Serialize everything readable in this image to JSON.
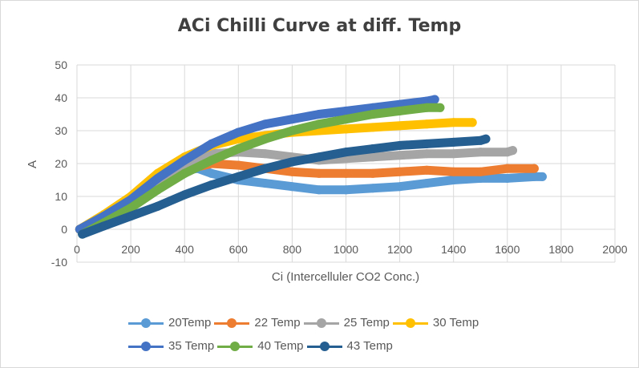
{
  "chart_data": {
    "type": "scatter",
    "title": "ACi Chilli Curve at diff. Temp",
    "xlabel": "Ci (Intercelluler CO2 Conc.)",
    "ylabel": "A",
    "xlim": [
      0,
      2000
    ],
    "ylim": [
      -10,
      50
    ],
    "xticks": [
      "0",
      "200",
      "400",
      "600",
      "800",
      "1000",
      "1200",
      "1400",
      "1600",
      "1800",
      "2000"
    ],
    "yticks": [
      "50",
      "40",
      "30",
      "20",
      "10",
      "0",
      "-10"
    ],
    "xtick_values": [
      0,
      200,
      400,
      600,
      800,
      1000,
      1200,
      1400,
      1600,
      1800,
      2000
    ],
    "ytick_values": [
      50,
      40,
      30,
      20,
      10,
      0,
      -10
    ],
    "grid": true,
    "legend": "bottom",
    "series": [
      {
        "name": "20Temp",
        "color": "#5b9bd5",
        "x": [
          10,
          100,
          200,
          300,
          400,
          450,
          500,
          600,
          700,
          800,
          900,
          1000,
          1100,
          1200,
          1300,
          1400,
          1500,
          1600,
          1700,
          1730
        ],
        "y": [
          0,
          4,
          9,
          14,
          18,
          18.5,
          17,
          15,
          14,
          13,
          12,
          12,
          12.5,
          13,
          14,
          15,
          15.5,
          15.5,
          16,
          16
        ]
      },
      {
        "name": "22 Temp",
        "color": "#ed7d31",
        "x": [
          10,
          100,
          200,
          300,
          400,
          500,
          600,
          700,
          800,
          900,
          1000,
          1100,
          1200,
          1300,
          1400,
          1500,
          1600,
          1700
        ],
        "y": [
          0,
          4,
          9,
          14,
          18,
          20,
          19.5,
          18.5,
          17.5,
          17,
          17,
          17,
          17.5,
          18,
          17.5,
          17.5,
          18.5,
          18.5
        ]
      },
      {
        "name": "25 Temp",
        "color": "#a5a5a5",
        "x": [
          10,
          100,
          200,
          300,
          400,
          500,
          600,
          700,
          800,
          900,
          1000,
          1100,
          1200,
          1300,
          1400,
          1500,
          1600,
          1620
        ],
        "y": [
          0,
          4,
          9,
          15,
          20,
          23,
          23.5,
          23,
          22,
          21,
          21.5,
          22,
          22.5,
          23,
          23,
          23.5,
          23.5,
          24
        ]
      },
      {
        "name": "30 Temp",
        "color": "#ffc000",
        "x": [
          10,
          100,
          200,
          300,
          400,
          500,
          600,
          700,
          800,
          900,
          1000,
          1100,
          1200,
          1300,
          1400,
          1470
        ],
        "y": [
          0,
          4.5,
          10,
          17,
          22,
          25.5,
          27.5,
          28.5,
          29.5,
          30,
          30.5,
          31,
          31.5,
          32,
          32.5,
          32.5
        ]
      },
      {
        "name": "35 Temp",
        "color": "#4472c4",
        "x": [
          10,
          100,
          200,
          300,
          400,
          500,
          600,
          700,
          800,
          900,
          1000,
          1100,
          1200,
          1300,
          1330
        ],
        "y": [
          0,
          4,
          9,
          15.5,
          21,
          26,
          29.5,
          32,
          33.5,
          35,
          36,
          37,
          38,
          39,
          39.5
        ]
      },
      {
        "name": "40 Temp",
        "color": "#70ad47",
        "x": [
          20,
          100,
          200,
          300,
          400,
          500,
          600,
          700,
          800,
          900,
          1000,
          1100,
          1200,
          1300,
          1350
        ],
        "y": [
          -1.5,
          2,
          6.5,
          12,
          17,
          21,
          24.5,
          27.5,
          30,
          32,
          33.5,
          35,
          36,
          37,
          37
        ]
      },
      {
        "name": "43 Temp",
        "color": "#255e91",
        "x": [
          20,
          100,
          200,
          300,
          400,
          500,
          600,
          700,
          800,
          900,
          1000,
          1100,
          1200,
          1300,
          1400,
          1500,
          1520
        ],
        "y": [
          -1.5,
          1,
          4,
          7,
          10.5,
          13.5,
          16,
          18.5,
          20.5,
          22,
          23.5,
          24.5,
          25.5,
          26,
          26.5,
          27,
          27.5
        ]
      }
    ]
  }
}
